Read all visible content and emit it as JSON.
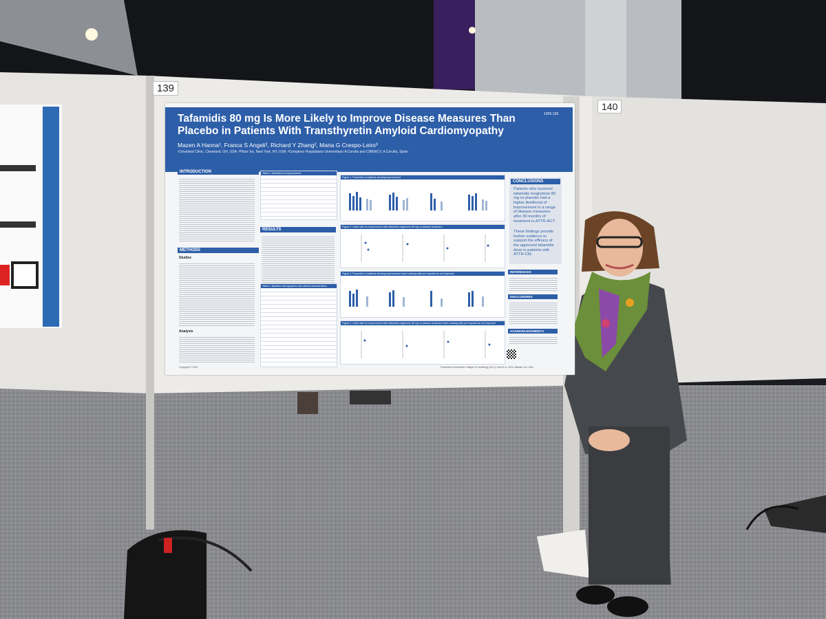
{
  "booth_numbers": [
    "139",
    "140"
  ],
  "poster": {
    "title": "Tafamidis 80 mg Is More Likely to Improve Disease Measures Than Placebo in Patients With Transthyretin Amyloid Cardiomyopathy",
    "id": "1205-139",
    "authors": "Mazen A Hanna¹, Franca S Angeli², Richard Y Zhang², Maria G Crespo-Leiro³",
    "affiliations": "¹Cleveland Clinic, Cleveland, OH, USA; ²Pfizer Inc, New York, NY, USA; ³Complexo Hospitalario Universitario A Coruña and CIBERCV, A Coruña, Spain",
    "sections": {
      "introduction": "INTRODUCTION",
      "methods": "METHODS",
      "studies": "Studies",
      "analysis": "Analysis",
      "results": "RESULTS",
      "conclusions": "CONCLUSIONS",
      "references": "REFERENCES",
      "disclosures": "DISCLOSURES",
      "acknowledgments": "ACKNOWLEDGMENTS"
    },
    "tables": [
      "Table 1. Definitions of improvement",
      "Table 2. Baseline demographics and clinical characteristics"
    ],
    "figures": [
      "Figure 1. Proportion of patients showing improvement",
      "Figure 2. Odds ratio for improvement with tafamidis meglumine 80 mg vs placebo treatment",
      "Figure 3. Proportion of patients showing improvement when missing data are imputed as not improved",
      "Figure 4. Odds ratio for improvement with tafamidis meglumine 80 mg vs placebo treatment when missing data are imputed as not improved"
    ],
    "conclusions": [
      "Patients who received tafamidis meglumine 80 mg vs placebo had a higher likelihood of improvement in a range of disease measures after 30 months of treatment in ATTR-ACT.",
      "These findings provide further evidence to support the efficacy of the approved tafamidis dose in patients with ATTR-CM."
    ],
    "copyright": "Copyright © 2024",
    "footer": "Presented at American College of Cardiology (ACC), April 6–8, 2024, Atlanta, GA, USA"
  }
}
